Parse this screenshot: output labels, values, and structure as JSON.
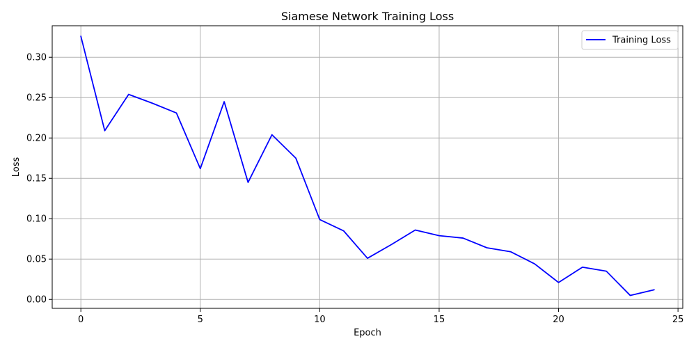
{
  "chart_data": {
    "type": "line",
    "title": "Siamese Network Training Loss",
    "xlabel": "Epoch",
    "ylabel": "Loss",
    "xlim": [
      -1.2,
      25.2
    ],
    "ylim": [
      -0.011,
      0.339
    ],
    "xticks": [
      0,
      5,
      10,
      15,
      20,
      25
    ],
    "xtick_labels": [
      "0",
      "5",
      "10",
      "15",
      "20",
      "25"
    ],
    "yticks": [
      0.0,
      0.05,
      0.1,
      0.15,
      0.2,
      0.25,
      0.3
    ],
    "ytick_labels": [
      "0.00",
      "0.05",
      "0.10",
      "0.15",
      "0.20",
      "0.25",
      "0.30"
    ],
    "grid": true,
    "legend_position": "top-right",
    "series": [
      {
        "name": "Training Loss",
        "color": "#0000ff",
        "x": [
          0,
          1,
          2,
          3,
          4,
          5,
          6,
          7,
          8,
          9,
          10,
          11,
          12,
          13,
          14,
          15,
          16,
          17,
          18,
          19,
          20,
          21,
          22,
          23,
          24
        ],
        "values": [
          0.326,
          0.209,
          0.254,
          0.243,
          0.231,
          0.162,
          0.245,
          0.145,
          0.204,
          0.175,
          0.099,
          0.085,
          0.051,
          0.068,
          0.086,
          0.079,
          0.076,
          0.064,
          0.059,
          0.044,
          0.021,
          0.04,
          0.035,
          0.005,
          0.012
        ]
      }
    ]
  }
}
